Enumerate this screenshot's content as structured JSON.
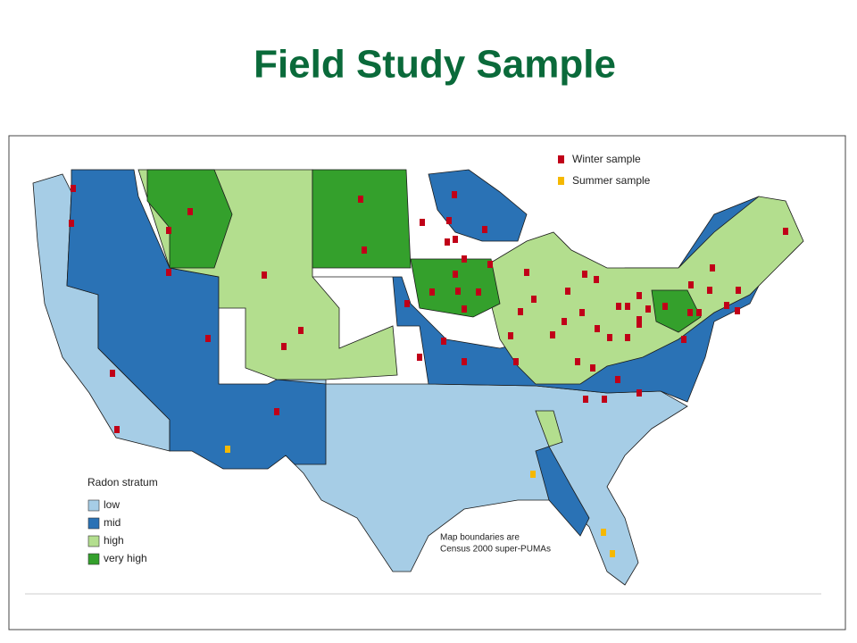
{
  "title": "Field Study Sample",
  "sample_legend": [
    {
      "label": "Winter sample",
      "color": "#c00018"
    },
    {
      "label": "Summer sample",
      "color": "#f5b800"
    }
  ],
  "stratum_legend": {
    "title": "Radon stratum",
    "items": [
      {
        "label": "low",
        "color": "#a6cde6"
      },
      {
        "label": "mid",
        "color": "#2a72b5"
      },
      {
        "label": "high",
        "color": "#b3de8e"
      },
      {
        "label": "very high",
        "color": "#34a02c"
      }
    ]
  },
  "note": [
    "Map boundaries are",
    "Census 2000 super-PUMAs"
  ]
}
